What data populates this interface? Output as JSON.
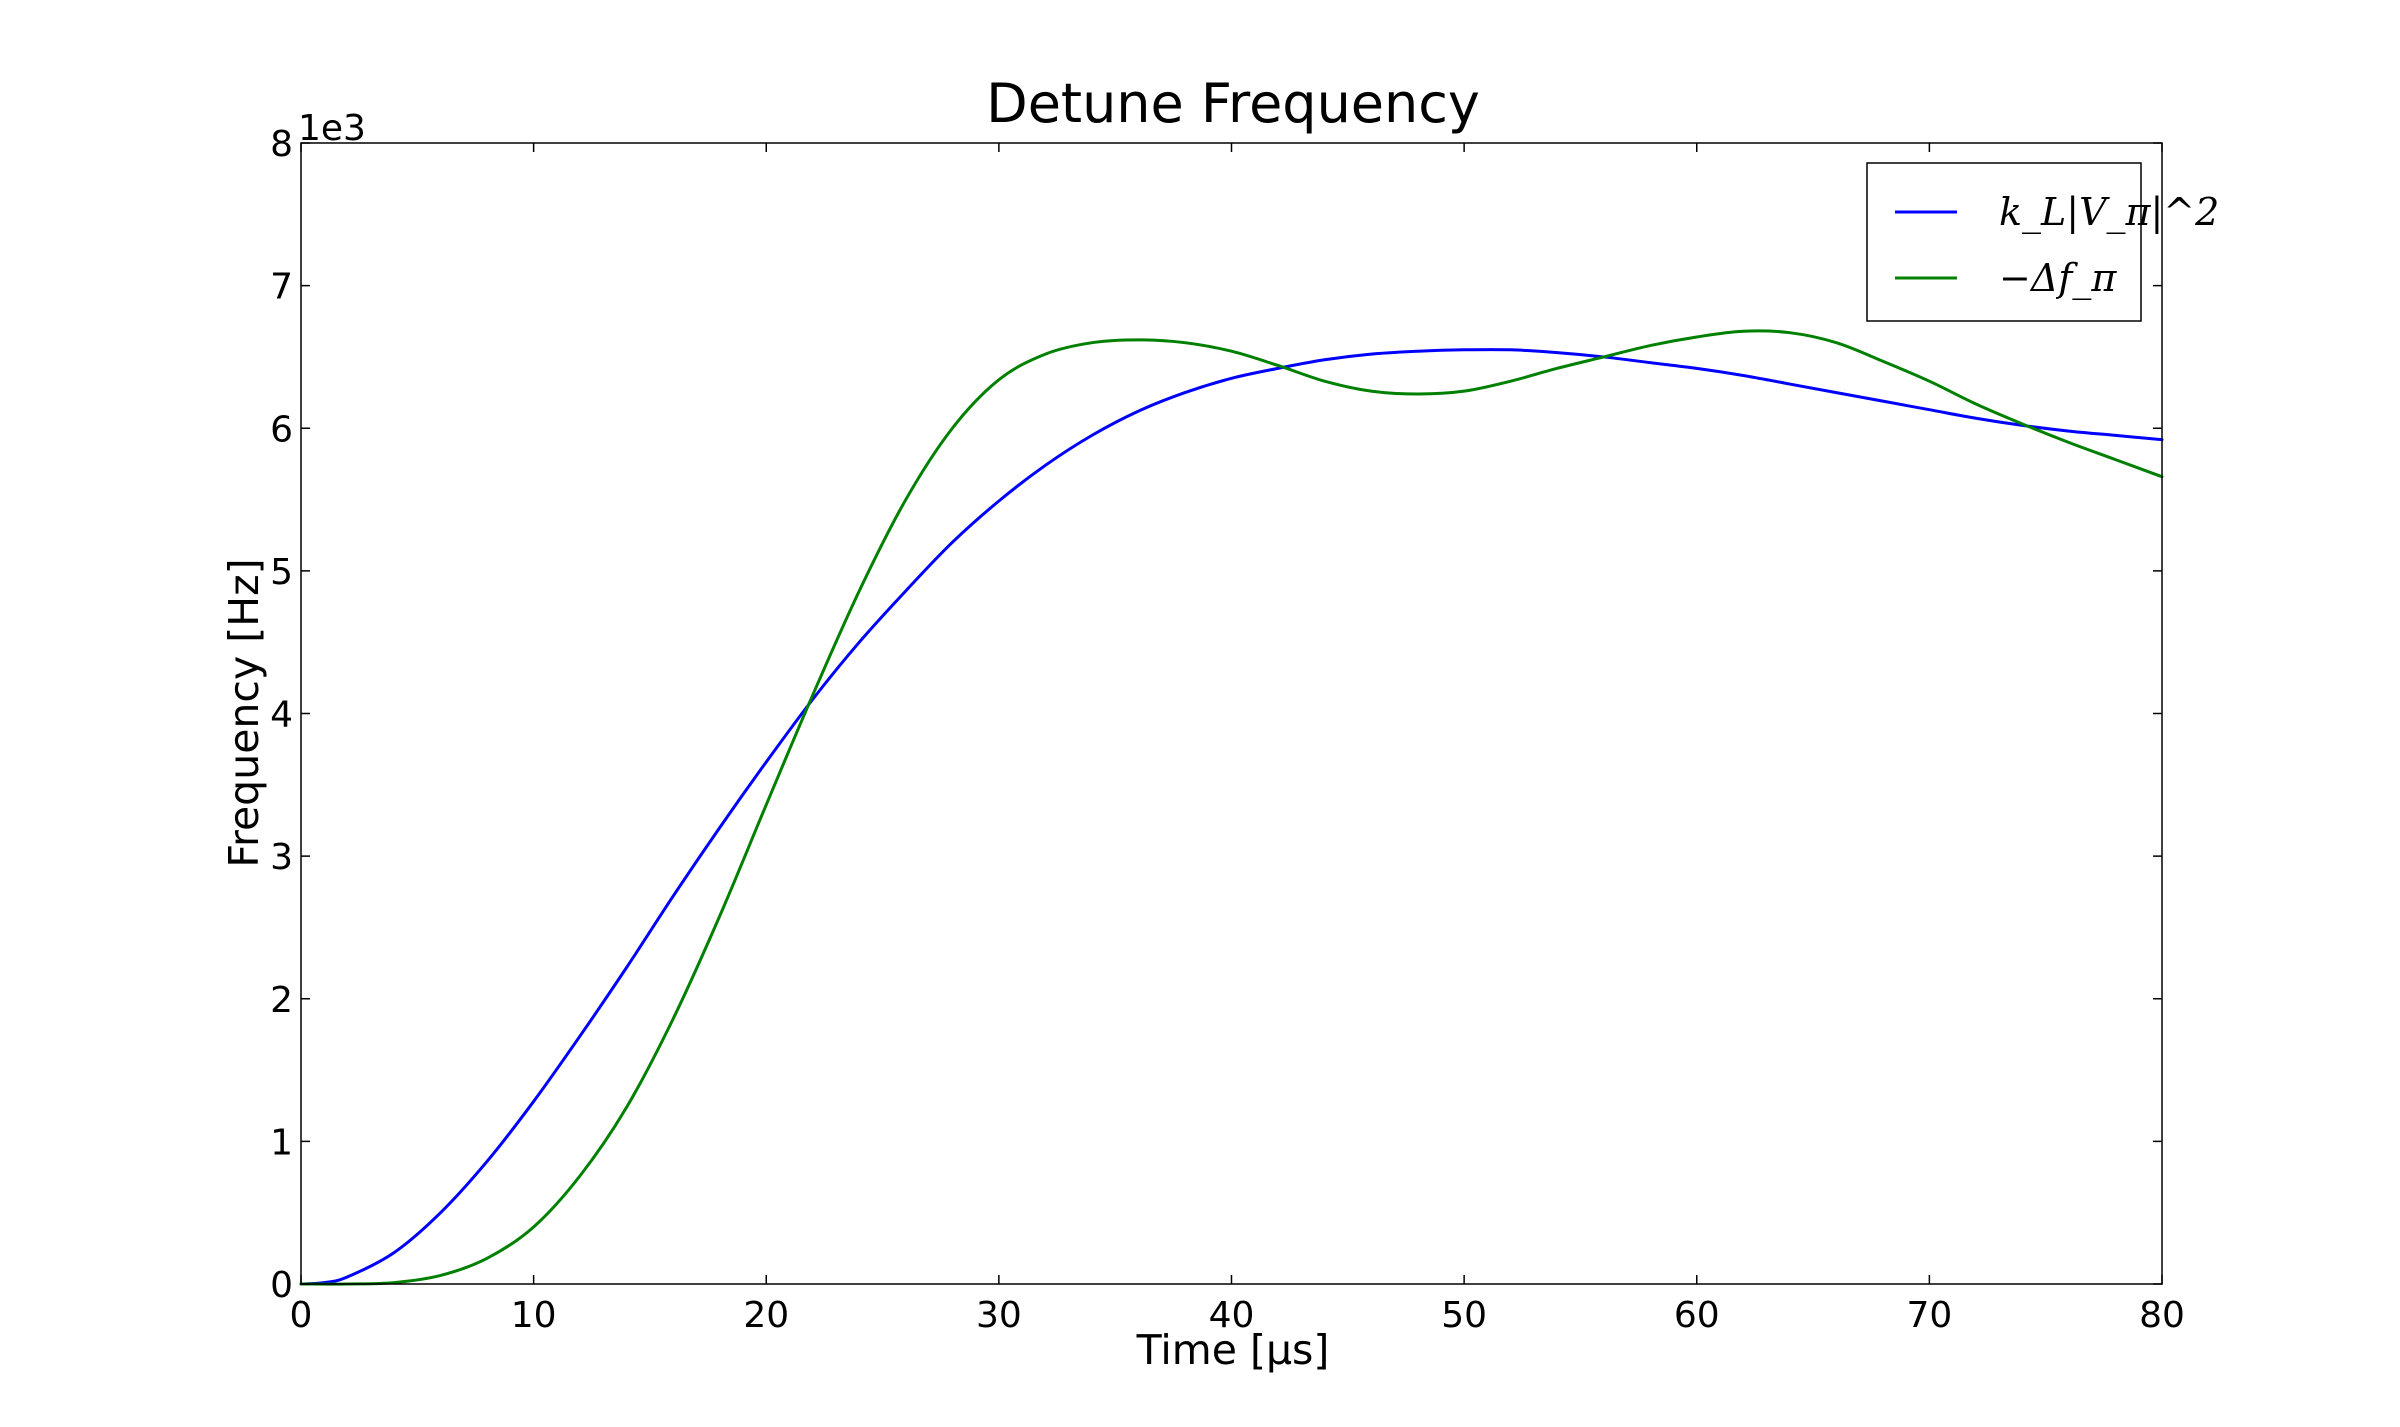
{
  "chart_data": {
    "type": "line",
    "title": "Detune Frequency",
    "xlabel": "Time [μs]",
    "ylabel": "Frequency [Hz]",
    "y_offset_label": "1e3",
    "xlim": [
      0,
      80
    ],
    "ylim": [
      0,
      8
    ],
    "x_ticks": [
      0,
      10,
      20,
      30,
      40,
      50,
      60,
      70,
      80
    ],
    "y_ticks": [
      0,
      1,
      2,
      3,
      4,
      5,
      6,
      7,
      8
    ],
    "grid": false,
    "legend_position": "top-right",
    "series": [
      {
        "name": "k_L|V_π|^2",
        "color": "#0000ff",
        "points": [
          [
            0,
            0
          ],
          [
            1,
            0.01
          ],
          [
            2,
            0.05
          ],
          [
            4,
            0.22
          ],
          [
            6,
            0.5
          ],
          [
            8,
            0.86
          ],
          [
            10,
            1.28
          ],
          [
            12,
            1.74
          ],
          [
            14,
            2.22
          ],
          [
            16,
            2.72
          ],
          [
            18,
            3.2
          ],
          [
            20,
            3.66
          ],
          [
            22,
            4.1
          ],
          [
            24,
            4.5
          ],
          [
            26,
            4.86
          ],
          [
            28,
            5.2
          ],
          [
            30,
            5.49
          ],
          [
            32,
            5.74
          ],
          [
            34,
            5.95
          ],
          [
            36,
            6.12
          ],
          [
            38,
            6.25
          ],
          [
            40,
            6.35
          ],
          [
            42,
            6.42
          ],
          [
            44,
            6.48
          ],
          [
            46,
            6.52
          ],
          [
            48,
            6.54
          ],
          [
            50,
            6.55
          ],
          [
            52,
            6.55
          ],
          [
            54,
            6.53
          ],
          [
            56,
            6.5
          ],
          [
            58,
            6.46
          ],
          [
            60,
            6.42
          ],
          [
            62,
            6.37
          ],
          [
            64,
            6.31
          ],
          [
            66,
            6.25
          ],
          [
            68,
            6.19
          ],
          [
            70,
            6.13
          ],
          [
            72,
            6.07
          ],
          [
            74,
            6.02
          ],
          [
            76,
            5.98
          ],
          [
            78,
            5.95
          ],
          [
            80,
            5.92
          ]
        ]
      },
      {
        "name": "−Δf_π",
        "color": "#008000",
        "points": [
          [
            0,
            0
          ],
          [
            2,
            0
          ],
          [
            4,
            0.01
          ],
          [
            6,
            0.06
          ],
          [
            8,
            0.18
          ],
          [
            10,
            0.4
          ],
          [
            12,
            0.76
          ],
          [
            14,
            1.24
          ],
          [
            16,
            1.86
          ],
          [
            18,
            2.58
          ],
          [
            20,
            3.36
          ],
          [
            22,
            4.13
          ],
          [
            24,
            4.86
          ],
          [
            26,
            5.5
          ],
          [
            28,
            6.0
          ],
          [
            30,
            6.34
          ],
          [
            32,
            6.52
          ],
          [
            34,
            6.6
          ],
          [
            36,
            6.62
          ],
          [
            38,
            6.6
          ],
          [
            40,
            6.54
          ],
          [
            42,
            6.44
          ],
          [
            44,
            6.33
          ],
          [
            46,
            6.26
          ],
          [
            48,
            6.24
          ],
          [
            50,
            6.26
          ],
          [
            52,
            6.33
          ],
          [
            54,
            6.42
          ],
          [
            56,
            6.5
          ],
          [
            58,
            6.58
          ],
          [
            60,
            6.64
          ],
          [
            62,
            6.68
          ],
          [
            64,
            6.67
          ],
          [
            66,
            6.6
          ],
          [
            68,
            6.47
          ],
          [
            70,
            6.33
          ],
          [
            72,
            6.17
          ],
          [
            74,
            6.03
          ],
          [
            76,
            5.9
          ],
          [
            78,
            5.78
          ],
          [
            80,
            5.66
          ]
        ]
      }
    ]
  }
}
